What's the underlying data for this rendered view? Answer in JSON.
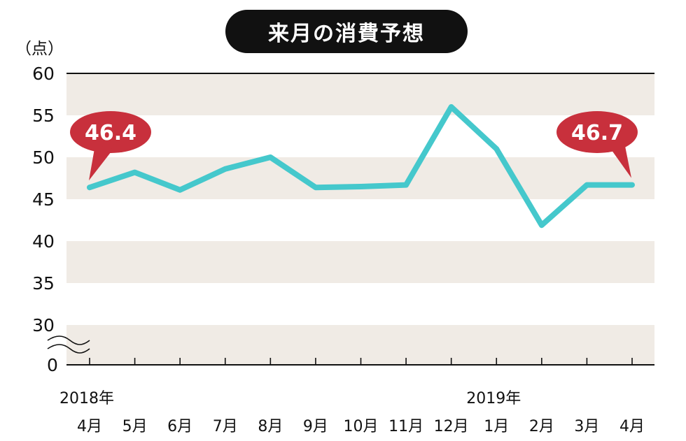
{
  "header": {
    "title": "来月の消費予想",
    "unit_label": "（点）"
  },
  "chart_data": {
    "type": "line",
    "title": "来月の消費予想",
    "ylabel": "（点）",
    "xlabel": "",
    "ylim": [
      30,
      60
    ],
    "y_ticks": [
      "60",
      "55",
      "50",
      "45",
      "40",
      "35",
      "30"
    ],
    "y_zero_label": "0",
    "y_axis_break": true,
    "categories": [
      "4月",
      "5月",
      "6月",
      "7月",
      "8月",
      "9月",
      "10月",
      "11月",
      "12月",
      "1月",
      "2月",
      "3月",
      "4月"
    ],
    "year_labels": [
      {
        "text": "2018年",
        "category_index": 0
      },
      {
        "text": "2019年",
        "category_index": 9
      }
    ],
    "series": [
      {
        "values": [
          46.4,
          48.2,
          46.1,
          48.6,
          50.0,
          46.4,
          46.5,
          46.7,
          56.0,
          51.0,
          41.9,
          46.7,
          46.7
        ],
        "color": "#45c8cc"
      }
    ],
    "annotations": [
      {
        "text": "46.4",
        "category_index": 0
      },
      {
        "text": "46.7",
        "category_index": 12
      }
    ],
    "band_color": "#f0ebe5",
    "callout_color": "#c8303c",
    "grid": false
  }
}
